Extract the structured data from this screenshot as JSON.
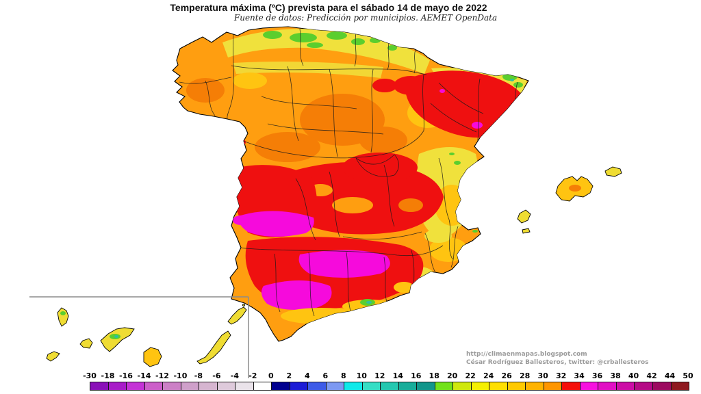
{
  "title": "Temperatura máxima (ºC) prevista para el sábado 14 de mayo de 2022",
  "subtitle": "Fuente de datos: Predicción por municipios. AEMET OpenData",
  "attribution": {
    "url": "http://climaenmapas.blogspot.com",
    "author": "César Rodríguez Ballesteros, twitter: @crballesteros"
  },
  "scale": {
    "unit": "ºC",
    "tick_labels": [
      "-30",
      "-18",
      "-16",
      "-14",
      "-12",
      "-10",
      "-8",
      "-6",
      "-4",
      "-2",
      "0",
      "2",
      "4",
      "6",
      "8",
      "10",
      "12",
      "14",
      "16",
      "18",
      "20",
      "22",
      "24",
      "26",
      "28",
      "30",
      "32",
      "34",
      "36",
      "38",
      "40",
      "42",
      "44",
      "50"
    ],
    "cell_colors": [
      "#8A10B8",
      "#A81CC8",
      "#C433D6",
      "#CC5FC9",
      "#CC80C6",
      "#CFA0CA",
      "#D6B5D0",
      "#DECADB",
      "#EAE3EA",
      "#FFFFFF",
      "#00008F",
      "#1C1CD6",
      "#3D5BE8",
      "#7D99F2",
      "#0FEAEA",
      "#35DEC5",
      "#24C8B0",
      "#17AD9A",
      "#11968B",
      "#72E21A",
      "#CFE80D",
      "#F5F002",
      "#FFDF00",
      "#FFC900",
      "#FFB300",
      "#FF9600",
      "#F50F0A",
      "#F711E0",
      "#E10FC4",
      "#CC0DA6",
      "#B50A86",
      "#9C0A60",
      "#8F1A20"
    ]
  },
  "map": {
    "palette": {
      "base_orange": "#FF9E10",
      "dark_orange": "#F57E06",
      "gold": "#FFC411",
      "yellow": "#F0E13C",
      "yellow_green": "#BFE022",
      "green": "#5BCE2E",
      "teal": "#2FBF9E",
      "red": "#EF1010",
      "magenta": "#F60ADC",
      "hot_pink": "#FF2E9A",
      "island_yellow": "#EFDC33",
      "inset_line": "#8C8C8C",
      "coast_line": "#000000"
    }
  }
}
